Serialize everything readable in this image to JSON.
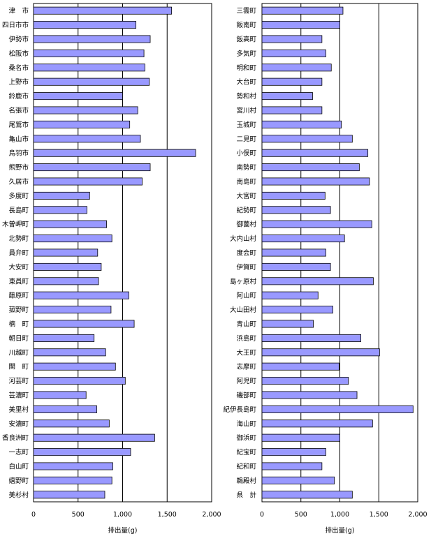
{
  "chart_data": [
    {
      "type": "bar",
      "orientation": "horizontal",
      "categories": [
        "津　市",
        "四日市市",
        "伊勢市",
        "松阪市",
        "桑名市",
        "上野市",
        "鈴鹿市",
        "名張市",
        "尾鷲市",
        "亀山市",
        "鳥羽市",
        "熊野市",
        "久居市",
        "多度町",
        "長島町",
        "木曽岬町",
        "北勢町",
        "員弁町",
        "大安町",
        "東員町",
        "藤原町",
        "菰野町",
        "楠　町",
        "朝日町",
        "川越町",
        "関　町",
        "河芸町",
        "芸濃町",
        "美里村",
        "安濃町",
        "香良洲町",
        "一志町",
        "白山町",
        "嬉野町",
        "美杉村"
      ],
      "values": [
        1550,
        1150,
        1310,
        1240,
        1250,
        1300,
        1000,
        1170,
        1080,
        1200,
        1820,
        1310,
        1220,
        630,
        600,
        820,
        880,
        720,
        760,
        730,
        1070,
        870,
        1130,
        680,
        810,
        920,
        1030,
        590,
        710,
        850,
        1360,
        1090,
        890,
        880,
        800
      ],
      "xlabel": "排出量(g)",
      "ylabel": "",
      "xlim": [
        0,
        2000
      ],
      "xticks": [
        "0",
        "500",
        "1,000",
        "1,500",
        "2,000"
      ],
      "xtick_values": [
        0,
        500,
        1000,
        1500,
        2000
      ],
      "grid": "vertical",
      "bar_color": "#9999ff"
    },
    {
      "type": "bar",
      "orientation": "horizontal",
      "categories": [
        "三雲町",
        "飯南町",
        "飯高町",
        "多気町",
        "明和町",
        "大台町",
        "勢和村",
        "宮川村",
        "玉城町",
        "二見町",
        "小俣町",
        "南勢町",
        "南島町",
        "大宮町",
        "紀勢町",
        "御薗村",
        "大内山村",
        "度会町",
        "伊賀町",
        "島ヶ原村",
        "阿山町",
        "大山田村",
        "青山町",
        "浜島町",
        "大王町",
        "志摩町",
        "阿児町",
        "磯部町",
        "紀伊長島町",
        "海山町",
        "御浜町",
        "紀宝町",
        "紀和町",
        "鵜殿村",
        "県　計"
      ],
      "values": [
        1040,
        1000,
        770,
        820,
        890,
        770,
        650,
        770,
        1020,
        1160,
        1360,
        1250,
        1380,
        810,
        880,
        1410,
        1060,
        820,
        880,
        1430,
        720,
        910,
        660,
        1270,
        1510,
        990,
        1110,
        1220,
        1940,
        1420,
        1000,
        820,
        770,
        930,
        1160
      ],
      "xlabel": "排出量(g)",
      "ylabel": "",
      "xlim": [
        0,
        2000
      ],
      "xticks": [
        "0",
        "500",
        "1,000",
        "1,500",
        "2,000"
      ],
      "xtick_values": [
        0,
        500,
        1000,
        1500,
        2000
      ],
      "grid": "vertical",
      "bar_color": "#9999ff"
    }
  ]
}
